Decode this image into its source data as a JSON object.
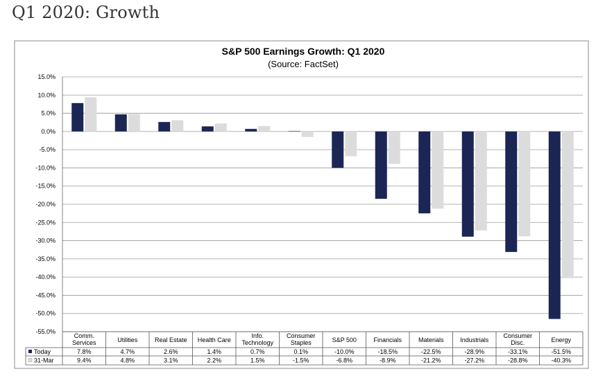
{
  "page": {
    "title": "Q1 2020: Growth"
  },
  "chart_data": {
    "type": "bar",
    "title": "S&P 500 Earnings Growth: Q1 2020",
    "subtitle": "(Source: FactSet)",
    "xlabel": "",
    "ylabel": "",
    "ylim": [
      -55,
      15
    ],
    "ytick_step": 5,
    "ytick_format": "percent_1dp",
    "grid": true,
    "legend": "table-below",
    "categories": [
      [
        "Comm.",
        "Services"
      ],
      [
        "Utilities"
      ],
      [
        "Real Estate"
      ],
      [
        "Health Care"
      ],
      [
        "Info.",
        "Technology"
      ],
      [
        "Consumer",
        "Staples"
      ],
      [
        "S&P 500"
      ],
      [
        "Financials"
      ],
      [
        "Materials"
      ],
      [
        "Industrials"
      ],
      [
        "Consumer",
        "Disc."
      ],
      [
        "Energy"
      ]
    ],
    "series": [
      {
        "name": "Today",
        "color": "#1b2654",
        "values": [
          7.8,
          4.7,
          2.6,
          1.4,
          0.7,
          0.1,
          -10.0,
          -18.5,
          -22.5,
          -28.9,
          -33.1,
          -51.5
        ],
        "labels": [
          "7.8%",
          "4.7%",
          "2.6%",
          "1.4%",
          "0.7%",
          "0.1%",
          "-10.0%",
          "-18.5%",
          "-22.5%",
          "-28.9%",
          "-33.1%",
          "-51.5%"
        ]
      },
      {
        "name": "31-Mar",
        "color": "#dcdcdc",
        "values": [
          9.4,
          4.8,
          3.1,
          2.2,
          1.5,
          -1.5,
          -6.8,
          -8.9,
          -21.2,
          -27.2,
          -28.8,
          -40.3
        ],
        "labels": [
          "9.4%",
          "4.8%",
          "3.1%",
          "2.2%",
          "1.5%",
          "-1.5%",
          "-6.8%",
          "-8.9%",
          "-21.2%",
          "-27.2%",
          "-28.8%",
          "-40.3%"
        ]
      }
    ]
  }
}
